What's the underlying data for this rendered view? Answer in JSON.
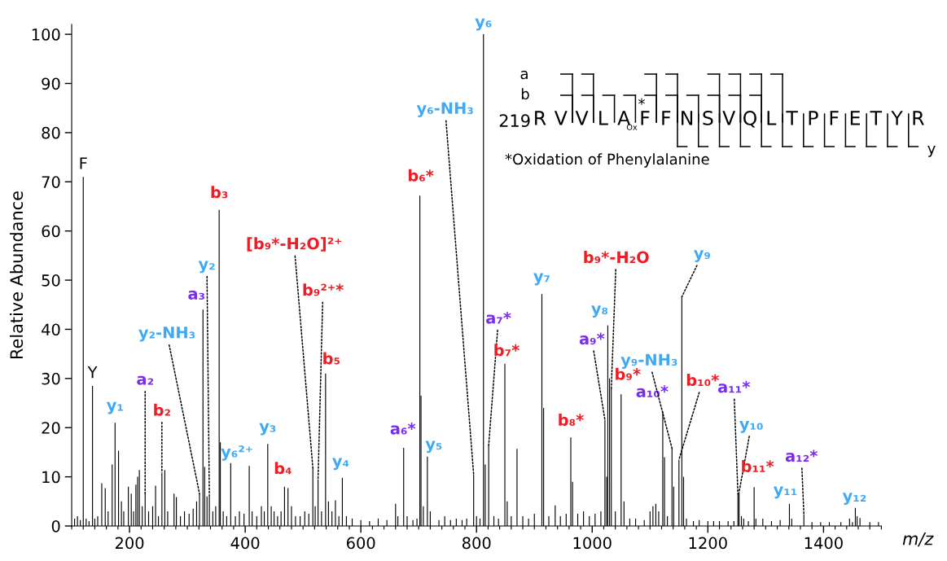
{
  "chart_data": {
    "type": "bar",
    "xlabel": "m/z",
    "ylabel": "Relative Abundance",
    "xlim": [
      100,
      1500
    ],
    "xticks": [
      200,
      400,
      600,
      800,
      1000,
      1200,
      1400
    ],
    "ylim": [
      0,
      102
    ],
    "yticks": [
      0,
      10,
      20,
      30,
      40,
      50,
      60,
      70,
      80,
      90,
      100
    ],
    "x": [
      105,
      110,
      115,
      120,
      125,
      130,
      136,
      140,
      145,
      152,
      158,
      163,
      170,
      175,
      181,
      186,
      190,
      198,
      203,
      207,
      211,
      214,
      217,
      222,
      227,
      233,
      240,
      245,
      250,
      256,
      261,
      266,
      277,
      281,
      288,
      295,
      303,
      310,
      316,
      321,
      327,
      330,
      334,
      338,
      344,
      349,
      355,
      357,
      362,
      368,
      375,
      383,
      390,
      398,
      407,
      412,
      420,
      428,
      433,
      439,
      445,
      450,
      456,
      462,
      468,
      474,
      480,
      487,
      495,
      503,
      510,
      517,
      521,
      526,
      532,
      539,
      544,
      550,
      556,
      562,
      568,
      575,
      585,
      600,
      615,
      630,
      645,
      660,
      664,
      674,
      680,
      690,
      697,
      702,
      704,
      708,
      715,
      720,
      735,
      745,
      755,
      765,
      775,
      783,
      795,
      800,
      806,
      812,
      815,
      821,
      830,
      838,
      849,
      853,
      860,
      870,
      880,
      890,
      900,
      913,
      916,
      925,
      936,
      945,
      955,
      963,
      966,
      975,
      985,
      995,
      1005,
      1015,
      1022,
      1025,
      1027,
      1030,
      1033,
      1040,
      1050,
      1055,
      1065,
      1075,
      1090,
      1100,
      1105,
      1110,
      1115,
      1122,
      1125,
      1130,
      1138,
      1141,
      1150,
      1155,
      1158,
      1163,
      1175,
      1185,
      1200,
      1210,
      1220,
      1235,
      1245,
      1252,
      1254,
      1258,
      1262,
      1270,
      1280,
      1283,
      1295,
      1310,
      1325,
      1341,
      1345,
      1366,
      1380,
      1395,
      1410,
      1430,
      1445,
      1450,
      1455,
      1458,
      1463,
      1480,
      1495
    ],
    "series": [
      {
        "color": "#000000",
        "values": [
          1.5,
          2,
          1.2,
          71,
          1.5,
          1,
          28.5,
          1.5,
          2,
          8.7,
          7.7,
          3,
          12.5,
          21,
          15.3,
          5,
          3,
          8,
          6.6,
          3,
          8.4,
          10,
          11.4,
          4,
          6.6,
          3,
          4,
          8.2,
          2,
          10.9,
          11.4,
          3,
          6.6,
          5.9,
          2,
          3,
          2.5,
          3.5,
          5,
          6.6,
          44,
          12,
          6,
          6.3,
          3,
          4,
          64.3,
          17,
          3,
          2,
          12.8,
          2,
          3,
          2.5,
          12.2,
          3,
          2,
          4,
          3,
          16.7,
          4,
          3,
          2,
          3,
          8,
          7.7,
          4,
          2,
          2,
          3,
          2.5,
          11.8,
          4,
          9.5,
          3,
          31,
          5,
          3,
          5.2,
          2,
          9.8,
          2,
          1.5,
          1.2,
          1,
          1.5,
          1.2,
          4.5,
          2,
          15.9,
          2,
          1.2,
          1.5,
          67.2,
          26.5,
          4,
          14.1,
          3,
          1.2,
          2,
          1.2,
          1.5,
          1.2,
          1.5,
          10.5,
          2,
          1.5,
          100,
          12.5,
          16.4,
          2,
          1.5,
          33,
          5,
          2,
          15.7,
          2,
          1.5,
          2.5,
          47.2,
          24,
          2,
          4.2,
          2,
          2.5,
          18,
          9,
          2.5,
          3,
          2,
          2.5,
          3,
          21.6,
          10,
          40.8,
          30,
          27.9,
          3,
          26.8,
          5,
          1.5,
          1.5,
          1.2,
          3,
          4,
          4.5,
          3,
          23.3,
          14,
          2,
          15.8,
          8,
          13.5,
          46.6,
          10,
          1.5,
          1,
          1.2,
          1,
          1,
          1,
          1,
          1,
          6.5,
          6.9,
          2,
          1.5,
          1,
          7.9,
          1.5,
          1.5,
          1,
          1.2,
          4.5,
          1.5,
          2.4,
          0.8,
          0.8,
          0.8,
          0.8,
          1.5,
          0.8,
          3.7,
          2,
          1.6,
          0.8,
          0.8
        ]
      }
    ],
    "annotations": [
      {
        "text": "F",
        "x": 120,
        "y": 71
      },
      {
        "text": "Y",
        "x": 136,
        "y": 28.5
      },
      {
        "text": "y₁",
        "x": 175,
        "y": 21
      },
      {
        "text": "a₂",
        "x": 227,
        "y": 6.6
      },
      {
        "text": "b₂",
        "x": 256,
        "y": 10.9
      },
      {
        "text": "y₂-NH₃",
        "x": 321,
        "y": 6.6
      },
      {
        "text": "a₃",
        "x": 327,
        "y": 44
      },
      {
        "text": "y₂",
        "x": 338,
        "y": 6.3
      },
      {
        "text": "b₃",
        "x": 355,
        "y": 64.3
      },
      {
        "text": "y₆²⁺",
        "x": 407,
        "y": 12.2
      },
      {
        "text": "y₃",
        "x": 439,
        "y": 16.7
      },
      {
        "text": "b₄",
        "x": 468,
        "y": 8
      },
      {
        "text": "[b₉*-H₂O]²⁺",
        "x": 517,
        "y": 11.8
      },
      {
        "text": "b₉²⁺*",
        "x": 526,
        "y": 9.5
      },
      {
        "text": "b₅",
        "x": 539,
        "y": 31
      },
      {
        "text": "y₄",
        "x": 568,
        "y": 9.8
      },
      {
        "text": "a₆*",
        "x": 674,
        "y": 15.9
      },
      {
        "text": "b₆*",
        "x": 702,
        "y": 67.2
      },
      {
        "text": "y₅",
        "x": 715,
        "y": 14.1
      },
      {
        "text": "y₆-NH₃",
        "x": 795,
        "y": 10.5
      },
      {
        "text": "y₆",
        "x": 812,
        "y": 100
      },
      {
        "text": "a₇*",
        "x": 821,
        "y": 16.4
      },
      {
        "text": "b₇*",
        "x": 849,
        "y": 33
      },
      {
        "text": "y₇",
        "x": 913,
        "y": 47.2
      },
      {
        "text": "b₈*",
        "x": 963,
        "y": 18
      },
      {
        "text": "a₉*",
        "x": 1022,
        "y": 21.6
      },
      {
        "text": "y₈",
        "x": 1027,
        "y": 40.8
      },
      {
        "text": "b₉*-H₂O",
        "x": 1033,
        "y": 27.9
      },
      {
        "text": "b₉*",
        "x": 1050,
        "y": 26.8
      },
      {
        "text": "a₁₀*",
        "x": 1122,
        "y": 23.3
      },
      {
        "text": "y₉-NH₃",
        "x": 1138,
        "y": 15.8
      },
      {
        "text": "b₁₀*",
        "x": 1150,
        "y": 13.5
      },
      {
        "text": "y₉",
        "x": 1155,
        "y": 46.6
      },
      {
        "text": "a₁₁*",
        "x": 1252,
        "y": 6.5
      },
      {
        "text": "y₁₀",
        "x": 1254,
        "y": 6.9
      },
      {
        "text": "b₁₁*",
        "x": 1280,
        "y": 7.9
      },
      {
        "text": "y₁₁",
        "x": 1341,
        "y": 4.5
      },
      {
        "text": "a₁₂*",
        "x": 1366,
        "y": 2.4
      },
      {
        "text": "y₁₂",
        "x": 1455,
        "y": 3.7
      },
      "a",
      "b",
      "219",
      "RVVLAFFNSVQLTPFETYR",
      "Ox",
      "*",
      "y",
      "*Oxidation of Phenylalanine"
    ]
  }
}
